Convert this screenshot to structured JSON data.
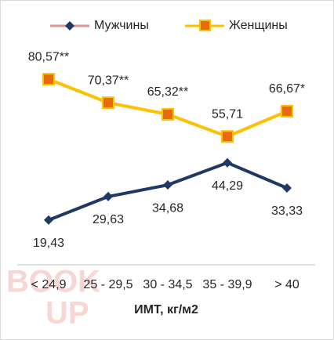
{
  "chart_data": {
    "type": "line",
    "categories": [
      "< 24,9",
      "25 - 29,5",
      "30 - 34,5",
      "35 - 39,9",
      "> 40"
    ],
    "x_label": "ИМТ, кг/м2",
    "ylim": [
      0,
      100
    ],
    "legend": "top",
    "watermark": [
      "BOOK",
      "UP"
    ],
    "series": [
      {
        "name": "Мужчины",
        "color": "#1f3864",
        "marker": "diamond",
        "values": [
          19.43,
          29.63,
          34.68,
          44.29,
          33.33
        ],
        "value_labels": [
          "19,43",
          "29,63",
          "34,68",
          "44,29",
          "33,33"
        ]
      },
      {
        "name": "Женщины",
        "color": "#ffc000",
        "marker": "square",
        "values": [
          80.57,
          70.37,
          65.32,
          55.71,
          66.67
        ],
        "value_labels": [
          "80,57**",
          "70,37**",
          "65,32**",
          "55,71",
          "66,67*"
        ]
      }
    ]
  }
}
